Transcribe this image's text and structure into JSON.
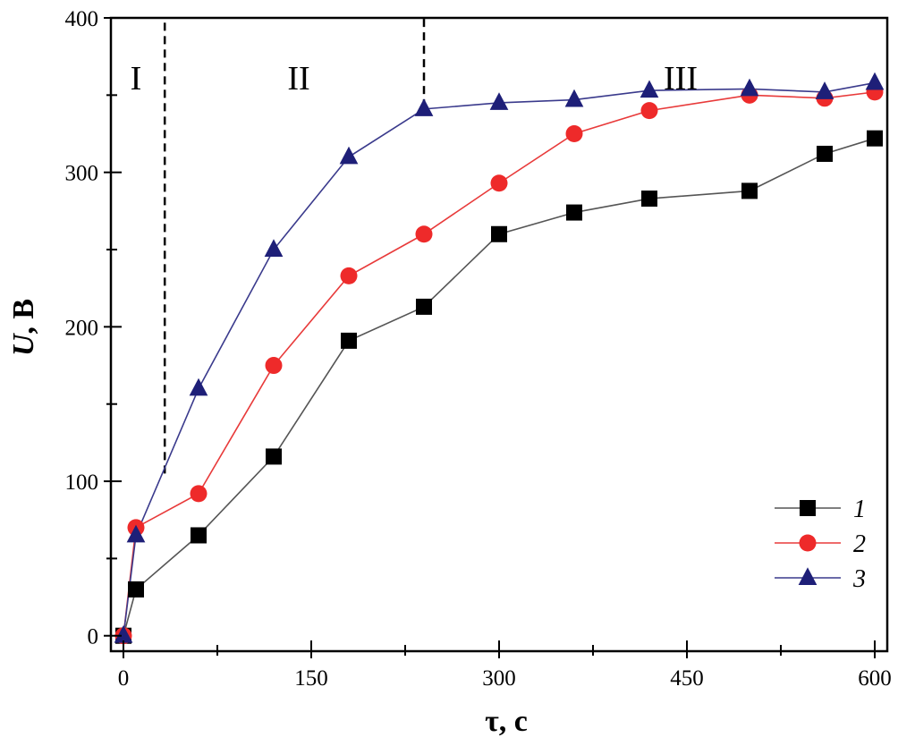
{
  "chart_data": {
    "type": "line",
    "xlabel": "τ, с",
    "ylabel": {
      "symbol": "U",
      "unit": ", В"
    },
    "xlim": [
      -10,
      610
    ],
    "ylim": [
      -10,
      400
    ],
    "xticks": [
      0,
      150,
      300,
      450,
      600
    ],
    "yticks": [
      0,
      100,
      200,
      300,
      400
    ],
    "grid": false,
    "legend_position": "bottom-right",
    "regions": [
      {
        "label": "I",
        "x_center": 10
      },
      {
        "label": "II",
        "x_center": 140
      },
      {
        "label": "III",
        "x_center": 445
      }
    ],
    "boundaries": [
      {
        "x": 33,
        "y_from": 105,
        "y_to": 400
      },
      {
        "x": 240,
        "y_from": 342,
        "y_to": 400
      }
    ],
    "series": [
      {
        "name": "1",
        "marker": "square",
        "color": "#555555",
        "marker_color": "#000000",
        "x": [
          0,
          10,
          60,
          120,
          180,
          240,
          300,
          360,
          420,
          500,
          560,
          600
        ],
        "y": [
          0,
          30,
          65,
          116,
          191,
          213,
          260,
          274,
          283,
          288,
          312,
          322
        ]
      },
      {
        "name": "2",
        "marker": "circle",
        "color": "#e83a3a",
        "marker_color": "#ee2a2a",
        "x": [
          0,
          10,
          60,
          120,
          180,
          240,
          300,
          360,
          420,
          500,
          560,
          600
        ],
        "y": [
          0,
          70,
          92,
          175,
          233,
          260,
          293,
          325,
          340,
          350,
          348,
          352
        ]
      },
      {
        "name": "3",
        "marker": "triangle",
        "color": "#3a3a8c",
        "marker_color": "#1e1f78",
        "x": [
          0,
          10,
          60,
          120,
          180,
          240,
          300,
          360,
          420,
          500,
          560,
          600
        ],
        "y": [
          0,
          65,
          160,
          250,
          310,
          341,
          345,
          347,
          353,
          354,
          352,
          358
        ]
      }
    ]
  }
}
